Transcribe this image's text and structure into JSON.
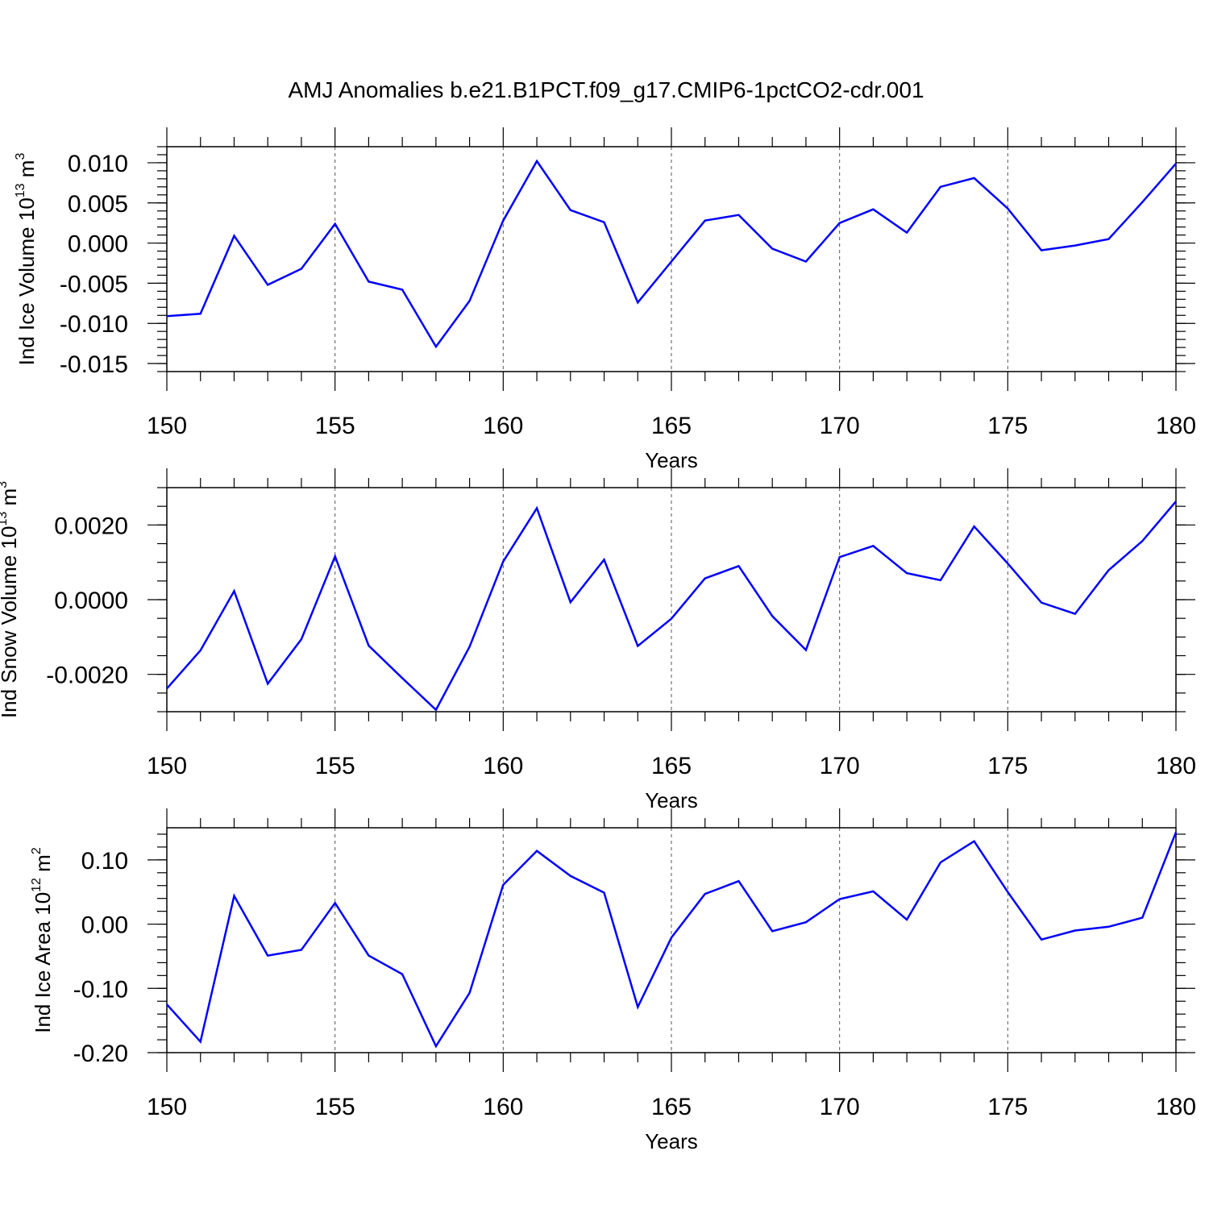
{
  "title": "AMJ Anomalies b.e21.B1PCT.f09_g17.CMIP6-1pctCO2-cdr.001",
  "chart_data": [
    {
      "type": "line",
      "ylabel_main": "Ind Ice Volume 10",
      "ylabel_exp": "13",
      "ylabel_unit": " m",
      "ylabel_unit_exp": "3",
      "xlabel": "Years",
      "xlim": [
        150,
        180
      ],
      "ylim": [
        -0.016,
        0.012
      ],
      "yticks": [
        -0.015,
        -0.01,
        -0.005,
        0.0,
        0.005,
        0.01
      ],
      "ytick_labels": [
        "-0.015",
        "-0.010",
        "-0.005",
        "0.000",
        "0.005",
        "0.010"
      ],
      "yminor_step": 0.001,
      "line_color": "#0000ff",
      "x": [
        150,
        151,
        152,
        153,
        154,
        155,
        156,
        157,
        158,
        159,
        160,
        161,
        162,
        163,
        164,
        165,
        166,
        167,
        168,
        169,
        170,
        171,
        172,
        173,
        174,
        175,
        176,
        177,
        178,
        179,
        180
      ],
      "values": [
        -0.0091,
        -0.0088,
        0.0009,
        -0.0052,
        -0.0032,
        0.0024,
        -0.0048,
        -0.0058,
        -0.0129,
        -0.0072,
        0.0028,
        0.0102,
        0.0041,
        0.0026,
        -0.0074,
        -0.0023,
        0.0028,
        0.0035,
        -0.0007,
        -0.0023,
        0.0025,
        0.0042,
        0.0013,
        0.007,
        0.0081,
        0.0043,
        -0.0009,
        -0.0003,
        0.0005,
        0.0051,
        0.0099
      ]
    },
    {
      "type": "line",
      "ylabel_main": "Ind Snow Volume 10",
      "ylabel_exp": "13",
      "ylabel_unit": " m",
      "ylabel_unit_exp": "3",
      "xlabel": "Years",
      "xlim": [
        150,
        180
      ],
      "ylim": [
        -0.003,
        0.003
      ],
      "yticks": [
        -0.002,
        0.0,
        0.002
      ],
      "ytick_labels": [
        "-0.0020",
        "0.0000",
        "0.0020"
      ],
      "yminor_step": 0.0005,
      "line_color": "#0000ff",
      "x": [
        150,
        151,
        152,
        153,
        154,
        155,
        156,
        157,
        158,
        159,
        160,
        161,
        162,
        163,
        164,
        165,
        166,
        167,
        168,
        169,
        170,
        171,
        172,
        173,
        174,
        175,
        176,
        177,
        178,
        179,
        180
      ],
      "values": [
        -0.00238,
        -0.00136,
        0.00023,
        -0.00225,
        -0.00106,
        0.00116,
        -0.00123,
        -0.0021,
        -0.00295,
        -0.00126,
        0.00102,
        0.00245,
        -7e-05,
        0.00107,
        -0.00124,
        -0.00051,
        0.00057,
        0.0009,
        -0.00044,
        -0.00135,
        0.00114,
        0.00144,
        0.00071,
        0.00052,
        0.00196,
        0.00097,
        -8e-05,
        -0.00038,
        0.00079,
        0.00157,
        0.00263
      ]
    },
    {
      "type": "line",
      "ylabel_main": "Ind Ice Area 10",
      "ylabel_exp": "12",
      "ylabel_unit": " m",
      "ylabel_unit_exp": "2",
      "xlabel": "Years",
      "xlim": [
        150,
        180
      ],
      "ylim": [
        -0.2,
        0.15
      ],
      "yticks": [
        -0.2,
        -0.1,
        0.0,
        0.1
      ],
      "ytick_labels": [
        "-0.20",
        "-0.10",
        "0.00",
        "0.10"
      ],
      "yminor_step": 0.02,
      "line_color": "#0000ff",
      "x": [
        150,
        151,
        152,
        153,
        154,
        155,
        156,
        157,
        158,
        159,
        160,
        161,
        162,
        163,
        164,
        165,
        166,
        167,
        168,
        169,
        170,
        171,
        172,
        173,
        174,
        175,
        176,
        177,
        178,
        179,
        180
      ],
      "values": [
        -0.125,
        -0.183,
        0.044,
        -0.049,
        -0.04,
        0.033,
        -0.049,
        -0.078,
        -0.19,
        -0.107,
        0.061,
        0.114,
        0.075,
        0.049,
        -0.129,
        -0.021,
        0.047,
        0.067,
        -0.011,
        0.003,
        0.039,
        0.051,
        0.007,
        0.096,
        0.129,
        0.05,
        -0.024,
        -0.01,
        -0.004,
        0.01,
        0.143
      ]
    }
  ],
  "xticks": [
    150,
    155,
    160,
    165,
    170,
    175,
    180
  ],
  "xtick_labels": [
    "150",
    "155",
    "160",
    "165",
    "170",
    "175",
    "180"
  ]
}
